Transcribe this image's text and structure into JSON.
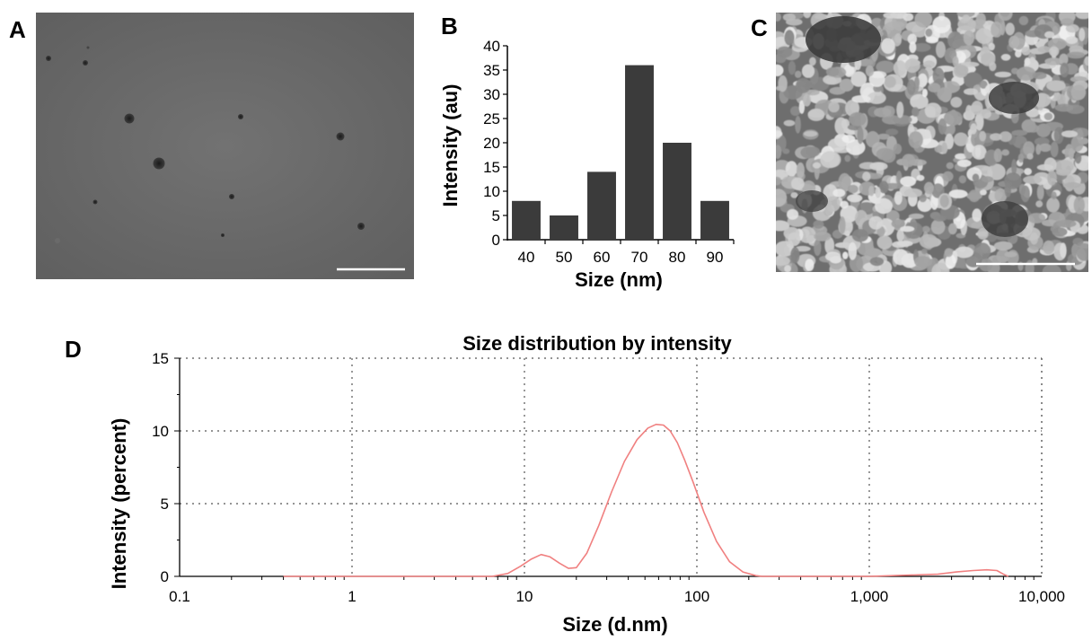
{
  "panels": {
    "a": {
      "letter": "A"
    },
    "b": {
      "letter": "B"
    },
    "c": {
      "letter": "C"
    },
    "d": {
      "letter": "D"
    }
  },
  "colors": {
    "bar_fill": "#3b3b3b",
    "dls_line": "#f08080",
    "grid": "#555555",
    "tem_background": "#686868",
    "sem_dark": "#3a3a3a",
    "sem_particles": "#bdbdbd"
  },
  "chart_data": [
    {
      "type": "bar",
      "title": "",
      "xlabel": "Size (nm)",
      "ylabel": "Intensity (au)",
      "categories": [
        "40",
        "50",
        "60",
        "70",
        "80",
        "90"
      ],
      "values": [
        8,
        5,
        14,
        36,
        20,
        8
      ],
      "ylim": [
        0,
        40
      ],
      "yticks": [
        "0",
        "5",
        "10",
        "15",
        "20",
        "25",
        "30",
        "35",
        "40"
      ],
      "grid": false
    },
    {
      "type": "line",
      "title": "Size distribution by intensity",
      "xlabel": "Size (d.nm)",
      "ylabel": "Intensity (percent)",
      "x_scale": "log",
      "xlim": [
        0.1,
        10000
      ],
      "ylim": [
        0,
        15
      ],
      "xticks": [
        "0.1",
        "1",
        "10",
        "100",
        "1,000",
        "10,000"
      ],
      "yticks": [
        "0",
        "5",
        "10",
        "15"
      ],
      "grid": true,
      "series": [
        {
          "x": [
            0.4,
            6.5,
            8,
            9.5,
            11,
            12.5,
            14,
            16,
            18,
            20,
            23,
            27,
            32,
            38,
            45,
            52,
            58,
            64,
            70,
            77,
            85,
            95,
            110,
            130,
            155,
            185,
            220,
            240,
            260,
            1000,
            2500,
            3200,
            4000,
            4800,
            5500,
            6000,
            6400
          ],
          "y": [
            0,
            0,
            0.2,
            0.7,
            1.2,
            1.5,
            1.35,
            0.9,
            0.55,
            0.6,
            1.6,
            3.5,
            5.8,
            7.9,
            9.4,
            10.2,
            10.45,
            10.4,
            10.0,
            9.2,
            8.0,
            6.5,
            4.4,
            2.4,
            1.0,
            0.3,
            0.05,
            0,
            0,
            0,
            0.15,
            0.3,
            0.4,
            0.45,
            0.4,
            0.15,
            0
          ]
        }
      ]
    }
  ]
}
